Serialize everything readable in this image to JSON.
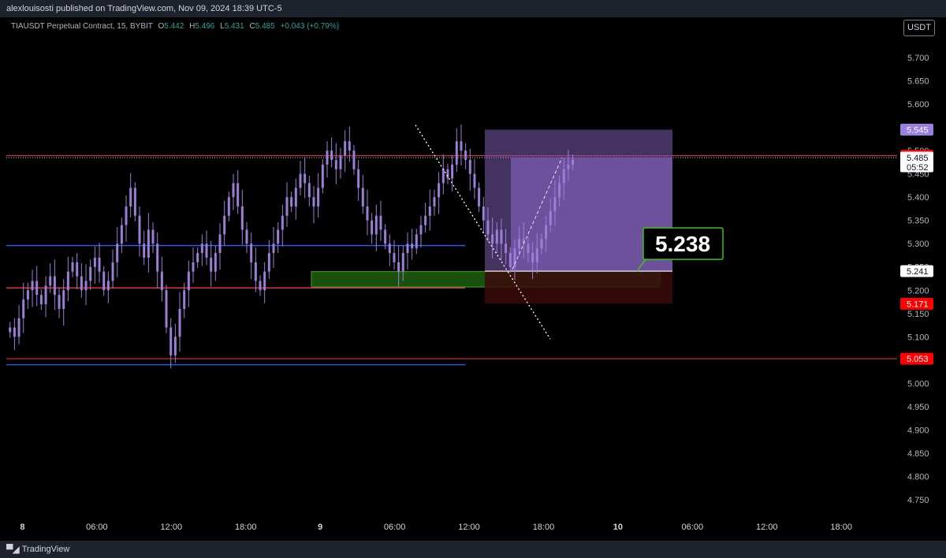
{
  "header": {
    "published_line": "alexlouisosti published on TradingView.com, Nov 09, 2024 18:39 UTC-5"
  },
  "legend": {
    "symbol": "TIAUSDT Perpetual Contract, 15, BYBIT",
    "open_key": "O",
    "open": "5.442",
    "high_key": "H",
    "high": "5.496",
    "low_key": "L",
    "low": "5.431",
    "close_key": "C",
    "close": "5.485",
    "change": "+0.043 (+0.79%)"
  },
  "currency_button": "USDT",
  "footer": {
    "brand": "TradingView",
    "logo_icon": "tradingview-logo-icon"
  },
  "colors": {
    "background": "#000000",
    "candle": "#9c7ed6",
    "tp_zone": "#7b5cb0",
    "sl_zone": "#3a0a0a",
    "green_zone": "#1f5a10",
    "red_line": "#f23645",
    "blue_line": "#2962ff",
    "label_red": "#ff0000",
    "label_purple": "#9b7fe0"
  },
  "chart_data": {
    "type": "candlestick",
    "y_range": [
      4.72,
      5.75
    ],
    "y_ticks": [
      "5.700",
      "5.650",
      "5.600",
      "5.550",
      "5.500",
      "5.450",
      "5.400",
      "5.350",
      "5.300",
      "5.250",
      "5.200",
      "5.150",
      "5.100",
      "5.050",
      "5.000",
      "4.950",
      "4.900",
      "4.850",
      "4.800",
      "4.750"
    ],
    "x_ticks": [
      {
        "label": "8",
        "t": 0,
        "bold": true
      },
      {
        "label": "06:00",
        "t": 6
      },
      {
        "label": "12:00",
        "t": 12
      },
      {
        "label": "18:00",
        "t": 18
      },
      {
        "label": "9",
        "t": 24,
        "bold": true
      },
      {
        "label": "06:00",
        "t": 30
      },
      {
        "label": "12:00",
        "t": 36
      },
      {
        "label": "18:00",
        "t": 42
      },
      {
        "label": "10",
        "t": 48,
        "bold": true
      },
      {
        "label": "06:00",
        "t": 54
      },
      {
        "label": "12:00",
        "t": 60
      },
      {
        "label": "18:00",
        "t": 66
      }
    ],
    "x_range_hours": [
      -1.3,
      70.5
    ],
    "closes": [
      5.12,
      5.1,
      5.14,
      5.18,
      5.2,
      5.22,
      5.19,
      5.17,
      5.21,
      5.23,
      5.19,
      5.16,
      5.2,
      5.24,
      5.26,
      5.23,
      5.2,
      5.22,
      5.25,
      5.27,
      5.24,
      5.2,
      5.22,
      5.26,
      5.3,
      5.34,
      5.38,
      5.42,
      5.36,
      5.3,
      5.27,
      5.33,
      5.3,
      5.24,
      5.2,
      5.12,
      5.06,
      5.1,
      5.16,
      5.2,
      5.24,
      5.26,
      5.28,
      5.3,
      5.27,
      5.24,
      5.28,
      5.32,
      5.36,
      5.4,
      5.43,
      5.38,
      5.33,
      5.3,
      5.26,
      5.22,
      5.2,
      5.24,
      5.28,
      5.3,
      5.33,
      5.36,
      5.4,
      5.38,
      5.42,
      5.45,
      5.43,
      5.4,
      5.38,
      5.42,
      5.47,
      5.5,
      5.48,
      5.46,
      5.49,
      5.52,
      5.5,
      5.46,
      5.42,
      5.38,
      5.35,
      5.32,
      5.36,
      5.33,
      5.3,
      5.28,
      5.26,
      5.24,
      5.28,
      5.3,
      5.29,
      5.32,
      5.34,
      5.36,
      5.38,
      5.4,
      5.43,
      5.46,
      5.44,
      5.47,
      5.52,
      5.5,
      5.48,
      5.45,
      5.42,
      5.38,
      5.35,
      5.32,
      5.3,
      5.33,
      5.3,
      5.28,
      5.25,
      5.29,
      5.31,
      5.3,
      5.28,
      5.26,
      5.29,
      5.31,
      5.34,
      5.37,
      5.4,
      5.43,
      5.46,
      5.47,
      5.48
    ],
    "levels": [
      {
        "name": "resistance-red",
        "value": 5.489,
        "label": "5.489",
        "style": "red"
      },
      {
        "name": "take-profit",
        "value": 5.545,
        "label": "5.545",
        "style": "purple"
      },
      {
        "name": "last-price",
        "value": 5.485,
        "label": "5.485",
        "countdown": "05:52",
        "style": "white"
      },
      {
        "name": "entry",
        "value": 5.241,
        "label": "5.241",
        "style": "white"
      },
      {
        "name": "stop-loss",
        "value": 5.171,
        "label": "5.171",
        "style": "red"
      },
      {
        "name": "support-red",
        "value": 5.053,
        "label": "5.053",
        "style": "red"
      }
    ],
    "blue_lines": [
      5.296,
      5.04
    ],
    "red_line_mid": 5.205,
    "callout": {
      "text": "5.238",
      "value": 5.238
    }
  }
}
